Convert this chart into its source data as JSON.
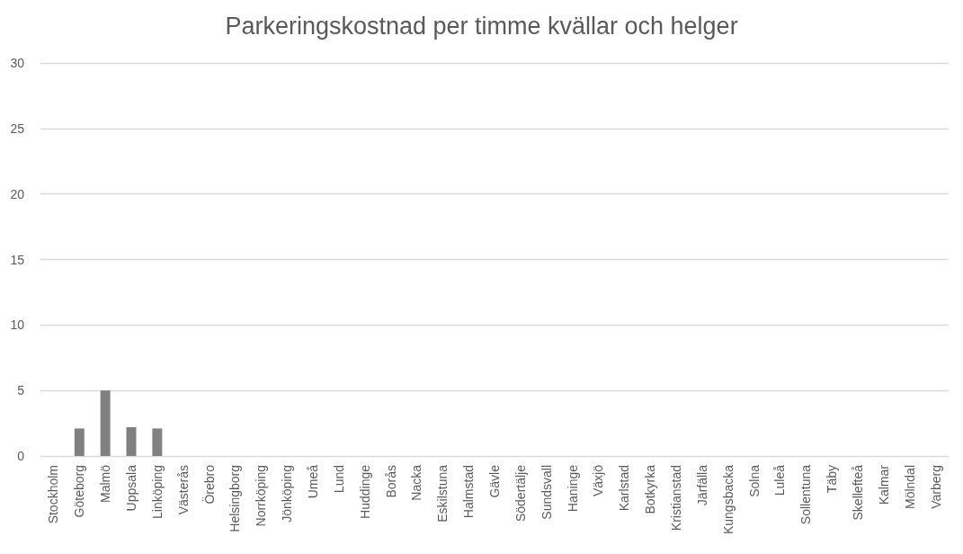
{
  "chart_data": {
    "type": "bar",
    "title": "Parkeringskostnad per timme kvällar och helger",
    "categories": [
      "Stockholm",
      "Göteborg",
      "Malmö",
      "Uppsala",
      "Linköping",
      "Västerås",
      "Örebro",
      "Helsingborg",
      "Norrköping",
      "Jönköping",
      "Umeå",
      "Lund",
      "Huddinge",
      "Borås",
      "Nacka",
      "Eskilstuna",
      "Halmstad",
      "Gävle",
      "Södertälje",
      "Sundsvall",
      "Haninge",
      "Växjö",
      "Karlstad",
      "Botkyrka",
      "Kristianstad",
      "Järfälla",
      "Kungsbacka",
      "Solna",
      "Luleå",
      "Sollentuna",
      "Täby",
      "Skellefteå",
      "Kalmar",
      "Mölndal",
      "Varberg"
    ],
    "values": [
      0,
      2.1,
      5,
      2.2,
      2.1,
      0,
      0,
      0,
      0,
      0,
      0,
      0,
      0,
      0,
      0,
      0,
      0,
      0,
      0,
      0,
      0,
      0,
      0,
      0,
      0,
      0,
      0,
      0,
      0,
      0,
      0,
      0,
      0,
      0,
      0
    ],
    "color": "#808080",
    "ylim": [
      0,
      30
    ],
    "yticks": [
      0,
      5,
      10,
      15,
      20,
      25,
      30
    ],
    "grid": true
  }
}
